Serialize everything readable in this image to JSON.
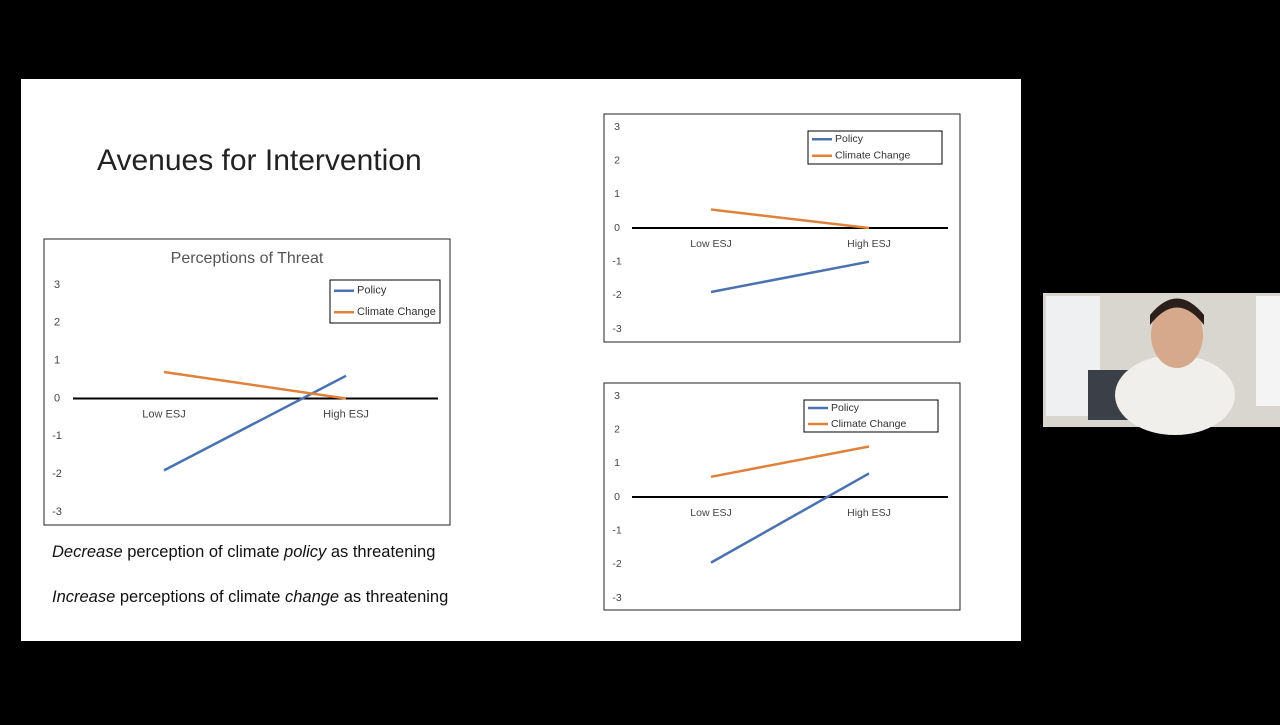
{
  "slide": {
    "title": "Avenues for Intervention",
    "bullets": [
      [
        {
          "text": "Decrease",
          "italic": true
        },
        {
          "text": " perception of climate ",
          "italic": false
        },
        {
          "text": "policy",
          "italic": true
        },
        {
          "text": " as threatening",
          "italic": false
        }
      ],
      [
        {
          "text": "Increase",
          "italic": true
        },
        {
          "text": " perceptions of climate ",
          "italic": false
        },
        {
          "text": "change",
          "italic": true
        },
        {
          "text": " as threatening",
          "italic": false
        }
      ]
    ]
  },
  "chart_data": [
    {
      "type": "line",
      "title": "Perceptions of Threat",
      "categories": [
        "Low ESJ",
        "High ESJ"
      ],
      "series": [
        {
          "name": "Policy",
          "color": "#4a72b0",
          "values": [
            -1.9,
            0.6
          ]
        },
        {
          "name": "Climate Change",
          "color": "#e0823b",
          "values": [
            0.7,
            0
          ]
        }
      ],
      "ylim": [
        -3,
        3
      ],
      "yticks": [
        -3,
        -2,
        -1,
        0,
        1,
        2,
        3
      ],
      "legend": "upper right"
    },
    {
      "type": "line",
      "categories": [
        "Low ESJ",
        "High ESJ"
      ],
      "series": [
        {
          "name": "Policy",
          "color": "#4a72b0",
          "values": [
            -1.9,
            -1
          ]
        },
        {
          "name": "Climate Change",
          "color": "#e0823b",
          "values": [
            0.55,
            0
          ]
        }
      ],
      "ylim": [
        -3,
        3
      ],
      "yticks": [
        -3,
        -2,
        -1,
        0,
        1,
        2,
        3
      ],
      "legend": "upper right"
    },
    {
      "type": "line",
      "categories": [
        "Low ESJ",
        "High ESJ"
      ],
      "series": [
        {
          "name": "Policy",
          "color": "#4a72b0",
          "values": [
            -1.95,
            0.7
          ]
        },
        {
          "name": "Climate Change",
          "color": "#e0823b",
          "values": [
            0.6,
            1.5
          ]
        }
      ],
      "ylim": [
        -3,
        3
      ],
      "yticks": [
        -3,
        -2,
        -1,
        0,
        1,
        2,
        3
      ],
      "legend": "upper right"
    }
  ]
}
